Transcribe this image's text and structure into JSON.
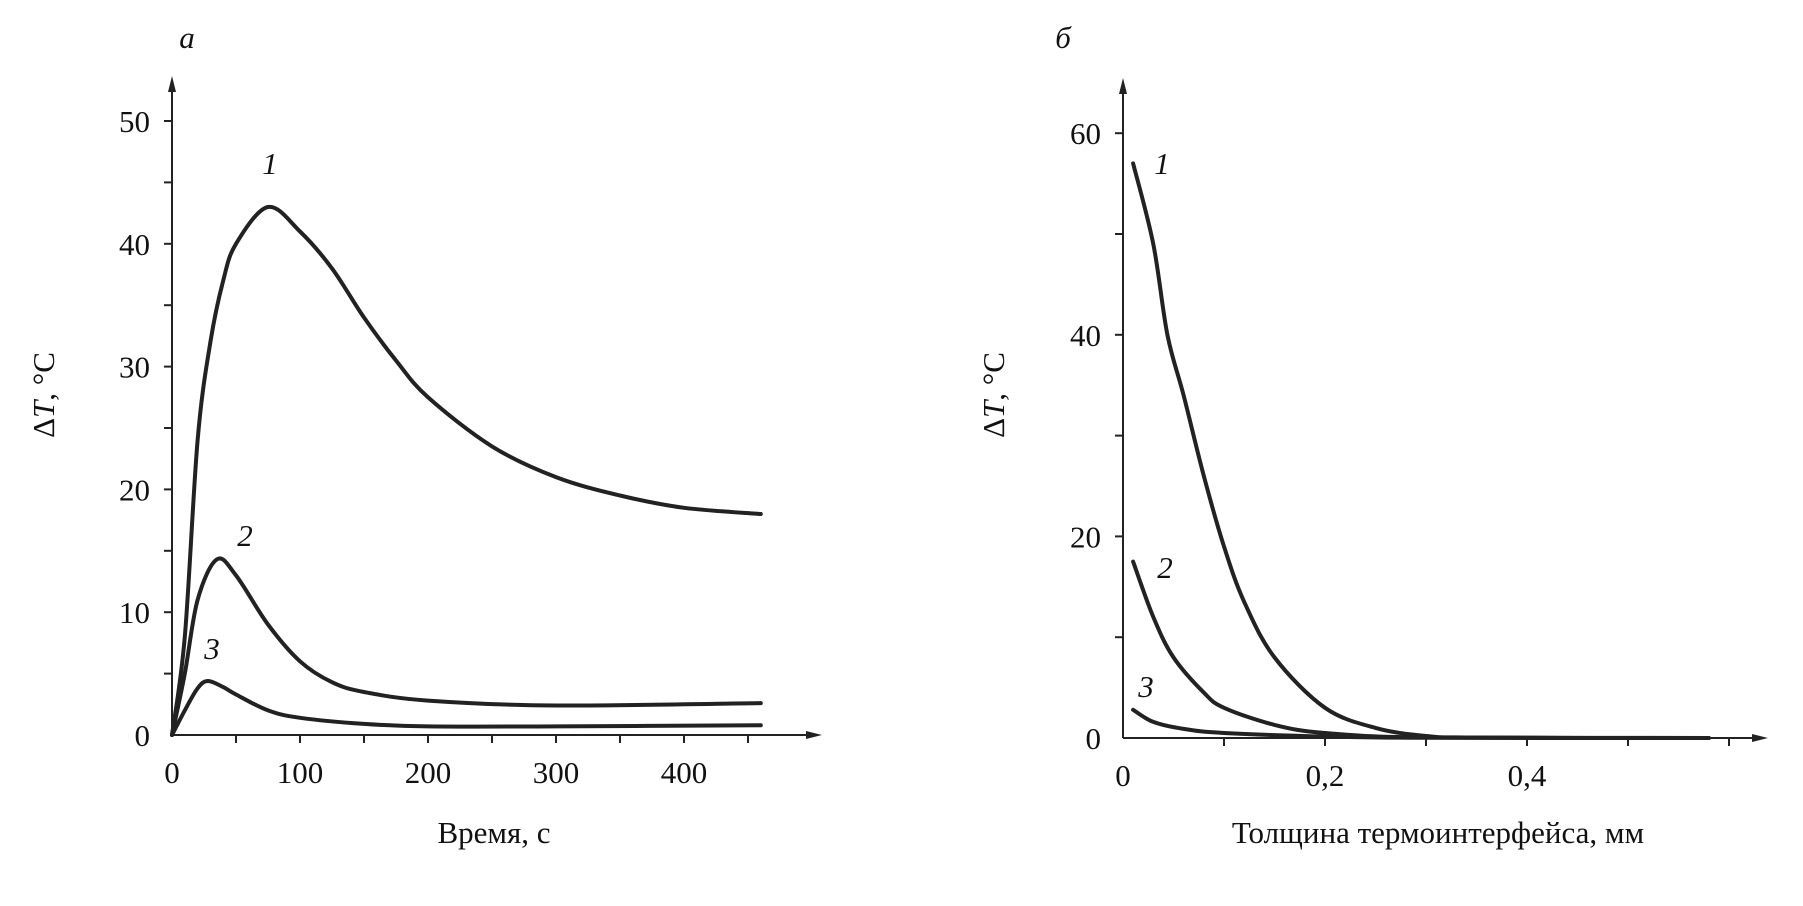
{
  "chart_data": [
    {
      "type": "line",
      "panel_label": "а",
      "xlabel": "Время, с",
      "ylabel_prefix": "Δ",
      "ylabel_var": "T",
      "ylabel_suffix": ", °C",
      "xlim": [
        0,
        520
      ],
      "ylim": [
        0,
        54
      ],
      "xticks": [
        0,
        100,
        200,
        300,
        400
      ],
      "xtick_labels": [
        "0",
        "100",
        "200",
        "300",
        "400"
      ],
      "xminor_step": 50,
      "yticks": [
        0,
        10,
        20,
        30,
        40,
        50
      ],
      "ytick_labels": [
        "0",
        "10",
        "20",
        "30",
        "40",
        "50"
      ],
      "yminor_step": 5,
      "grid": false,
      "series": [
        {
          "name": "1",
          "x": [
            0,
            10,
            20,
            30,
            40,
            50,
            75,
            100,
            125,
            150,
            175,
            200,
            250,
            300,
            350,
            400,
            460
          ],
          "y": [
            0,
            8,
            24,
            32,
            37,
            40,
            43,
            41,
            38,
            34,
            30.5,
            27.5,
            23.5,
            21,
            19.5,
            18.5,
            18
          ]
        },
        {
          "name": "2",
          "x": [
            0,
            10,
            20,
            35,
            50,
            75,
            100,
            125,
            150,
            200,
            300,
            460
          ],
          "y": [
            0,
            5,
            11,
            14.3,
            13,
            9,
            6,
            4.3,
            3.5,
            2.8,
            2.4,
            2.6
          ]
        },
        {
          "name": "3",
          "x": [
            0,
            10,
            20,
            28,
            40,
            50,
            75,
            100,
            150,
            200,
            300,
            460
          ],
          "y": [
            0,
            2,
            3.8,
            4.4,
            3.9,
            3.3,
            2,
            1.4,
            0.9,
            0.7,
            0.7,
            0.8
          ]
        }
      ]
    },
    {
      "type": "line",
      "panel_label": "б",
      "xlabel": "Толщина термоинтерфейса, мм",
      "ylabel_prefix": "Δ",
      "ylabel_var": "T",
      "ylabel_suffix": ", °C",
      "xlim": [
        0,
        0.64
      ],
      "ylim": [
        0,
        65
      ],
      "xticks": [
        0,
        0.2,
        0.4
      ],
      "xtick_labels": [
        "0",
        "0,2",
        "0,4"
      ],
      "xminor_ticks": [
        0.1,
        0.2,
        0.3,
        0.4,
        0.5,
        0.6
      ],
      "yticks": [
        0,
        20,
        40,
        60
      ],
      "ytick_labels": [
        "0",
        "20",
        "40",
        "60"
      ],
      "yminor_step": 10,
      "grid": false,
      "series": [
        {
          "name": "1",
          "x": [
            0.01,
            0.03,
            0.044,
            0.06,
            0.08,
            0.1,
            0.12,
            0.15,
            0.2,
            0.25,
            0.3,
            0.35,
            0.58
          ],
          "y": [
            57,
            49,
            40,
            34,
            26,
            19,
            13.5,
            8,
            3,
            1,
            0.2,
            0.05,
            0
          ]
        },
        {
          "name": "2",
          "x": [
            0.01,
            0.03,
            0.05,
            0.08,
            0.1,
            0.15,
            0.2,
            0.3,
            0.58
          ],
          "y": [
            17.5,
            12,
            8,
            4.5,
            3,
            1.3,
            0.5,
            0.05,
            0
          ]
        },
        {
          "name": "3",
          "x": [
            0.01,
            0.03,
            0.06,
            0.1,
            0.2,
            0.3,
            0.58
          ],
          "y": [
            2.8,
            1.6,
            0.9,
            0.5,
            0.15,
            0.02,
            0
          ]
        }
      ]
    }
  ]
}
